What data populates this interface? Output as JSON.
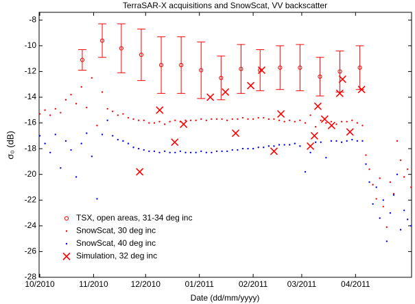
{
  "chart_data": {
    "type": "scatter",
    "title": "TerraSAR-X acquisitions and SnowScat, VV backscatter",
    "xlabel": "Date (dd/mm/yyyy)",
    "ylabel": "σ₀ (dB)",
    "xlim": [
      -0.4,
      214.3
    ],
    "ylim": [
      -28,
      -7.4
    ],
    "xticks": [
      {
        "value": 0,
        "label": "10/2010"
      },
      {
        "value": 31,
        "label": "11/2010"
      },
      {
        "value": 61,
        "label": "12/2010"
      },
      {
        "value": 92,
        "label": "01/2011"
      },
      {
        "value": 123,
        "label": "02/2011"
      },
      {
        "value": 151,
        "label": "03/2011"
      },
      {
        "value": 182,
        "label": "04/2011"
      }
    ],
    "yticks": [
      -8,
      -10,
      -12,
      -14,
      -16,
      -18,
      -20,
      -22,
      -24,
      -26,
      -28
    ],
    "legend": "lower left",
    "series": [
      {
        "name": "TSX, open areas, 31-34 deg inc",
        "color": "#ff0000",
        "marker": "circle",
        "x": [
          24.5,
          36,
          47,
          58.5,
          70,
          81.5,
          93,
          104.5,
          116,
          127,
          138.5,
          150,
          161.5,
          173,
          184.5
        ],
        "values": [
          -11.1,
          -9.6,
          -10.2,
          -10.7,
          -11.5,
          -11.5,
          -11.9,
          -12.5,
          -11.8,
          -11.9,
          -11.7,
          -11.7,
          -12.4,
          -12.0,
          -11.7
        ],
        "errors": [
          0.8,
          1.3,
          1.9,
          2.0,
          2.2,
          2.2,
          2.2,
          1.7,
          1.9,
          1.6,
          1.7,
          1.8,
          1.5,
          1.6,
          1.7
        ]
      },
      {
        "name": "SnowScat, 30 deg inc",
        "color": "#ff0000",
        "marker": "dot",
        "x": [
          0,
          3,
          6,
          9,
          12,
          15,
          18,
          21,
          24,
          27,
          30,
          33,
          36,
          39,
          42,
          45,
          48,
          51,
          54,
          57,
          60,
          63,
          66,
          69,
          72,
          75,
          78,
          81,
          84,
          87,
          90,
          93,
          96,
          99,
          102,
          105,
          108,
          111,
          114,
          117,
          120,
          123,
          126,
          129,
          132,
          135,
          138,
          141,
          144,
          147,
          150,
          153,
          156,
          159,
          162,
          165,
          168,
          171,
          174,
          177,
          180,
          183,
          186,
          188,
          190,
          192,
          194,
          196,
          198,
          200,
          202,
          204,
          206,
          208,
          210,
          212,
          214
        ],
        "values": [
          -15.3,
          -15.0,
          -15.4,
          -14.9,
          -15.2,
          -14.2,
          -13.8,
          -14.5,
          -13.2,
          -14.8,
          -12.5,
          -16.2,
          -13.6,
          -14.9,
          -15.1,
          -15.4,
          -15.3,
          -15.6,
          -15.7,
          -15.8,
          -15.8,
          -16.0,
          -16.0,
          -15.9,
          -16.1,
          -15.9,
          -15.8,
          -15.9,
          -15.8,
          -15.8,
          -15.8,
          -15.7,
          -15.8,
          -15.7,
          -15.7,
          -15.7,
          -15.8,
          -15.7,
          -15.7,
          -15.6,
          -15.7,
          -15.7,
          -15.6,
          -15.6,
          -15.7,
          -15.7,
          -15.8,
          -15.9,
          -15.8,
          -15.9,
          -15.8,
          -16.0,
          -15.4,
          -16.3,
          -15.8,
          -16.0,
          -15.9,
          -16.1,
          -15.9,
          -15.9,
          -15.8,
          -16.0,
          -16.2,
          -18.5,
          -19.6,
          -20.8,
          -21.9,
          -20.3,
          -22.5,
          -24.1,
          -20.6,
          -21.5,
          -17.4,
          -18.9,
          -20.2,
          -19.6,
          -21.0
        ]
      },
      {
        "name": "SnowScat, 40 deg inc",
        "color": "#0000ff",
        "marker": "dot",
        "x": [
          0,
          3,
          6,
          9,
          12,
          15,
          18,
          21,
          24,
          27,
          30,
          33,
          36,
          39,
          42,
          45,
          48,
          51,
          54,
          57,
          60,
          63,
          66,
          69,
          72,
          75,
          78,
          81,
          84,
          87,
          90,
          93,
          96,
          99,
          102,
          105,
          108,
          111,
          114,
          117,
          120,
          123,
          126,
          129,
          132,
          135,
          138,
          141,
          144,
          147,
          150,
          153,
          156,
          159,
          162,
          165,
          168,
          171,
          174,
          177,
          180,
          183,
          186,
          188,
          190,
          192,
          194,
          196,
          198,
          200,
          202,
          204,
          206,
          208,
          210,
          212,
          214
        ],
        "values": [
          -17.0,
          -17.6,
          -18.3,
          -16.9,
          -19.5,
          -17.4,
          -18.1,
          -20.2,
          -17.6,
          -16.8,
          -18.6,
          -21.9,
          -16.9,
          -15.8,
          -17.0,
          -17.3,
          -17.4,
          -17.6,
          -17.9,
          -18.0,
          -18.1,
          -18.2,
          -18.2,
          -18.3,
          -18.2,
          -18.3,
          -18.3,
          -18.2,
          -18.3,
          -18.3,
          -18.3,
          -18.2,
          -18.3,
          -18.3,
          -18.2,
          -18.2,
          -18.2,
          -18.1,
          -18.1,
          -18.0,
          -18.0,
          -18.0,
          -17.9,
          -17.9,
          -17.8,
          -17.8,
          -17.7,
          -17.7,
          -17.7,
          -17.6,
          -17.8,
          -19.8,
          -18.3,
          -17.5,
          -17.5,
          -18.7,
          -17.4,
          -17.4,
          -17.5,
          -17.4,
          -17.3,
          -17.4,
          -17.4,
          -19.2,
          -20.6,
          -22.3,
          -21.0,
          -23.4,
          -22.0,
          -25.2,
          -23.0,
          -21.6,
          -20.0,
          -24.3,
          -22.8,
          -23.5,
          -24.0
        ]
      },
      {
        "name": "Simulation, 32 deg inc",
        "color": "#ff0000",
        "marker": "cross",
        "x": [
          57.6,
          69.1,
          77.8,
          82.9,
          98.3,
          107,
          112.9,
          121.6,
          127.9,
          135,
          139,
          156,
          158.3,
          160.3,
          164.2,
          168.2,
          172.9,
          174.5,
          178.8,
          185.5
        ],
        "values": [
          -19.8,
          -15.0,
          -17.5,
          -16.1,
          -14.0,
          -13.6,
          -16.8,
          -13.1,
          -11.9,
          -18.2,
          -15.3,
          -17.8,
          -17.0,
          -14.7,
          -15.7,
          -16.2,
          -13.7,
          -12.6,
          -16.7,
          -13.4
        ]
      }
    ]
  }
}
